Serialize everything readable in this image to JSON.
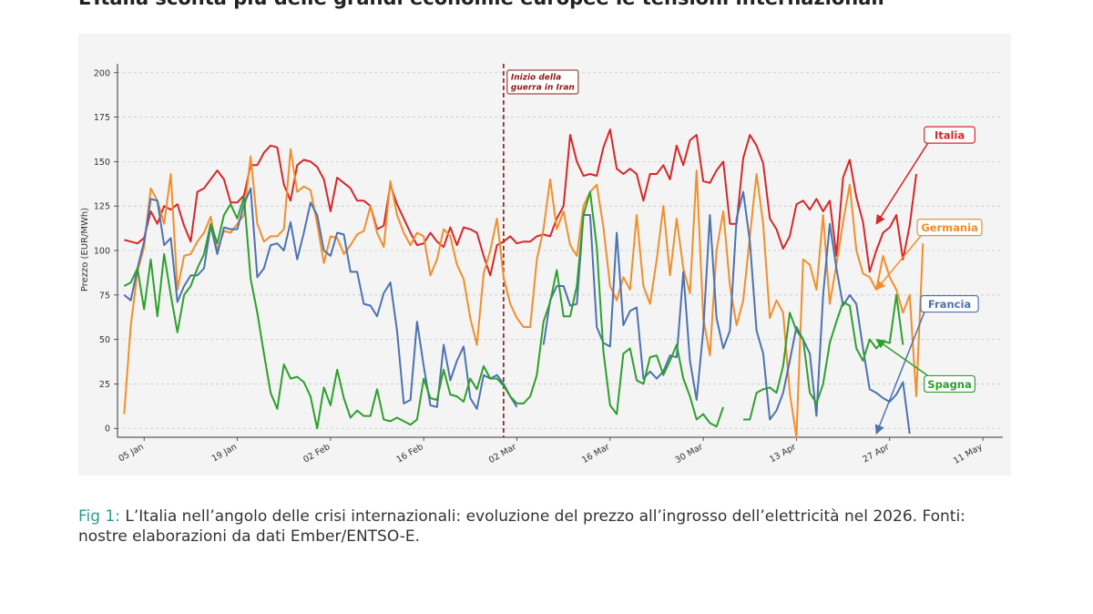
{
  "headline": "L’Italia sconta più delle grandi economie europee le tensioni internazionali",
  "caption": {
    "label": "Fig 1:",
    "text": " L’Italia nell’angolo delle crisi internazionali: evoluzione del prezzo all’ingrosso dell’elettricità nel 2026. Fonti: nostre elaborazioni da dati Ember/ENTSO-E."
  },
  "chart_data": {
    "type": "line",
    "ylabel": "Prezzo (EUR/MWh)",
    "ylim": [
      -5,
      205
    ],
    "yticks": [
      0,
      25,
      50,
      75,
      100,
      125,
      150,
      175,
      200
    ],
    "x_start": "2026-01-01",
    "x_end": "2026-05-14",
    "xticks": [
      {
        "date": "2026-01-05",
        "label": "05 Jan"
      },
      {
        "date": "2026-01-19",
        "label": "19 Jan"
      },
      {
        "date": "2026-02-02",
        "label": "02 Feb"
      },
      {
        "date": "2026-02-16",
        "label": "16 Feb"
      },
      {
        "date": "2026-03-02",
        "label": "02 Mar"
      },
      {
        "date": "2026-03-16",
        "label": "16 Mar"
      },
      {
        "date": "2026-03-30",
        "label": "30 Mar"
      },
      {
        "date": "2026-04-13",
        "label": "13 Apr"
      },
      {
        "date": "2026-04-27",
        "label": "27 Apr"
      },
      {
        "date": "2026-05-11",
        "label": "11 May"
      }
    ],
    "grid": true,
    "event": {
      "date": "2026-02-28",
      "label_line1": "Inizio della",
      "label_line2": "guerra in Iran",
      "color": "#8b1a1a"
    },
    "series_start": "2026-01-02",
    "series": [
      {
        "name": "Italia",
        "color": "#d62728",
        "label_pos": {
          "date": "2026-05-06",
          "value": 165
        },
        "arrow_to": {
          "date": "2026-04-25",
          "value": 115
        },
        "values": [
          106,
          105,
          104,
          107,
          122,
          115,
          125,
          123,
          126,
          114,
          105,
          133,
          135,
          140,
          145,
          140,
          127,
          127,
          131,
          148,
          148,
          155,
          159,
          158,
          137,
          128,
          148,
          151,
          150,
          147,
          140,
          122,
          141,
          138,
          135,
          128,
          128,
          125,
          112,
          114,
          137,
          126,
          118,
          110,
          103,
          104,
          110,
          105,
          102,
          113,
          103,
          113,
          112,
          110,
          97,
          86,
          103,
          105,
          108,
          104,
          105,
          105,
          108,
          109,
          108,
          118,
          125,
          165,
          150,
          142,
          143,
          142,
          158,
          168,
          146,
          143,
          146,
          143,
          128,
          143,
          143,
          148,
          140,
          159,
          148,
          162,
          165,
          139,
          138,
          145,
          150,
          115,
          115,
          152,
          165,
          159,
          149,
          118,
          112,
          101,
          108,
          126,
          128,
          123,
          129,
          122,
          128,
          97,
          141,
          151,
          130,
          116,
          88,
          100,
          110,
          113,
          120,
          95,
          114,
          143
        ],
        "gaps": []
      },
      {
        "name": "Germania",
        "color": "#f28e2b",
        "label_pos": {
          "date": "2026-05-06",
          "value": 113
        },
        "arrow_to": {
          "date": "2026-04-25",
          "value": 78
        },
        "values": [
          8,
          58,
          88,
          102,
          135,
          128,
          115,
          143,
          78,
          97,
          98,
          105,
          110,
          119,
          100,
          111,
          110,
          115,
          120,
          153,
          115,
          105,
          108,
          108,
          112,
          157,
          133,
          136,
          134,
          115,
          93,
          108,
          107,
          98,
          103,
          109,
          111,
          125,
          110,
          102,
          139,
          120,
          110,
          103,
          110,
          108,
          86,
          95,
          112,
          108,
          92,
          84,
          62,
          47,
          87,
          100,
          118,
          85,
          70,
          62,
          57,
          57,
          95,
          112,
          140,
          112,
          122,
          103,
          97,
          125,
          133,
          137,
          113,
          80,
          72,
          85,
          78,
          120,
          80,
          70,
          95,
          125,
          86,
          118,
          90,
          76,
          145,
          62,
          41,
          100,
          122,
          80,
          58,
          72,
          108,
          143,
          115,
          62,
          72,
          65,
          20,
          -5,
          95,
          92,
          78,
          120,
          70,
          92,
          116,
          137,
          100,
          87,
          85,
          78,
          97,
          85,
          78,
          65,
          75,
          18,
          104
        ],
        "gaps": []
      },
      {
        "name": "Francia",
        "color": "#4c72b0",
        "label_pos": {
          "date": "2026-05-06",
          "value": 70
        },
        "arrow_to": {
          "date": "2026-04-25",
          "value": -3
        },
        "values": [
          75,
          72,
          90,
          105,
          129,
          128,
          103,
          107,
          71,
          80,
          86,
          86,
          90,
          114,
          98,
          113,
          112,
          112,
          126,
          135,
          85,
          90,
          103,
          104,
          100,
          116,
          95,
          110,
          127,
          120,
          100,
          97,
          110,
          109,
          88,
          88,
          70,
          69,
          63,
          76,
          82,
          55,
          14,
          16,
          60,
          35,
          13,
          12,
          47,
          27,
          38,
          46,
          17,
          11,
          30,
          28,
          30,
          25,
          18,
          12,
          null,
          null,
          null,
          47,
          72,
          80,
          80,
          69,
          70,
          120,
          120,
          57,
          48,
          46,
          110,
          58,
          66,
          68,
          28,
          32,
          28,
          32,
          41,
          40,
          88,
          38,
          16,
          55,
          120,
          62,
          45,
          55,
          118,
          133,
          105,
          55,
          42,
          5,
          10,
          20,
          38,
          57,
          50,
          42,
          7,
          75,
          115,
          90,
          69,
          75,
          70,
          45,
          22,
          20,
          17,
          15,
          19,
          26,
          -3
        ],
        "gaps": []
      },
      {
        "name": "Spagna",
        "color": "#2ca02c",
        "label_pos": {
          "date": "2026-05-06",
          "value": 25
        },
        "arrow_to": {
          "date": "2026-04-25",
          "value": 50
        },
        "values": [
          80,
          82,
          90,
          67,
          95,
          63,
          98,
          75,
          54,
          75,
          80,
          90,
          98,
          115,
          104,
          120,
          126,
          118,
          130,
          84,
          65,
          42,
          20,
          11,
          36,
          28,
          29,
          26,
          18,
          0,
          23,
          13,
          33,
          17,
          6,
          10,
          7,
          7,
          22,
          5,
          4,
          6,
          4,
          2,
          5,
          28,
          17,
          16,
          33,
          19,
          18,
          15,
          28,
          22,
          35,
          28,
          28,
          24,
          18,
          14,
          14,
          18,
          30,
          60,
          71,
          89,
          63,
          63,
          80,
          120,
          133,
          102,
          43,
          13,
          8,
          42,
          45,
          27,
          25,
          40,
          41,
          30,
          38,
          47,
          28,
          18,
          5,
          8,
          3,
          1,
          12,
          null,
          null,
          5,
          5,
          20,
          22,
          23,
          20,
          35,
          65,
          55,
          50,
          20,
          14,
          25,
          48,
          60,
          71,
          69,
          45,
          38,
          50,
          45,
          49,
          48,
          75,
          47
        ],
        "gaps": []
      }
    ]
  }
}
